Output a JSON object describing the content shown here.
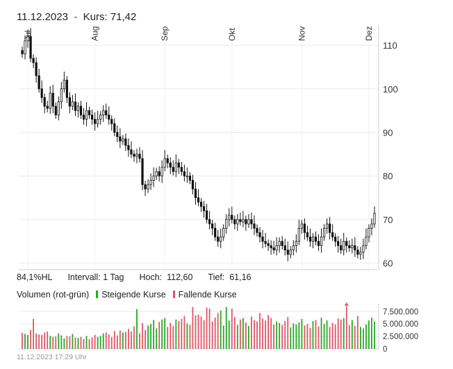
{
  "header": {
    "date": "11.12.2023",
    "separator": "-",
    "price_label": "Kurs: 71,42"
  },
  "info": {
    "hl_ratio": "84,1%HL",
    "interval": "Intervall: 1 Tag",
    "high": "Hoch:  112,60",
    "low": "Tief:  61,16"
  },
  "legend": {
    "volume_label": "Volumen (rot-grün)",
    "rising_label": "Steigende Kurse",
    "falling_label": "Fallende Kurse",
    "rising_color": "#22aa22",
    "falling_color": "#e05565"
  },
  "footer": {
    "timestamp": "11.12.2023 17:29 Uhr"
  },
  "chart_data": [
    {
      "type": "candlestick",
      "x_tick_labels": [
        "Jul",
        "Aug",
        "Sep",
        "Okt",
        "Nov",
        "Dez"
      ],
      "y_ticks": [
        60,
        70,
        80,
        90,
        100,
        110
      ],
      "ylim": [
        58.5,
        114
      ],
      "grid": true,
      "series": [
        {
          "close": [
            108,
            111,
            112,
            107,
            106,
            103,
            100,
            98,
            96,
            95.5,
            99,
            96,
            94,
            97,
            100,
            102,
            98,
            96,
            97,
            95,
            96,
            94,
            93,
            95,
            94,
            93,
            92,
            93,
            94,
            95,
            94,
            93,
            92,
            90,
            89,
            88,
            88.5,
            87,
            86,
            85,
            84.5,
            85,
            84,
            78,
            77,
            78,
            79,
            80,
            81,
            80,
            82,
            84,
            83,
            82,
            81,
            83,
            82,
            81,
            80,
            80,
            79,
            77,
            75,
            74,
            73,
            72,
            70,
            69,
            68,
            66,
            65,
            66,
            68,
            70,
            71,
            70,
            69,
            70,
            69.5,
            70,
            69,
            70,
            69,
            68,
            67,
            66,
            65,
            64.5,
            64,
            63.5,
            63,
            64,
            65,
            64,
            63,
            62,
            63,
            64,
            65,
            68,
            69,
            67,
            66,
            65,
            66,
            65,
            64,
            66,
            68,
            69,
            67,
            66,
            65,
            64,
            63,
            65,
            64,
            63.5,
            64,
            63,
            62,
            62.5,
            64,
            66,
            68,
            69,
            71.42
          ]
        }
      ],
      "volume": {
        "y_ticks": [
          0,
          2500000,
          5000000,
          7500000
        ],
        "y_tick_labels": [
          "0",
          "2.500.000",
          "5.000.000",
          "7.500.000"
        ],
        "ylim": [
          0,
          8800000
        ],
        "series": [
          {
            "values": [
              3200000,
              3000000,
              2800000,
              3800000,
              6000000,
              3100000,
              2900000,
              2800000,
              3300000,
              3500000,
              2600000,
              2400000,
              2500000,
              3100000,
              2700000,
              2100000,
              2600000,
              2500000,
              3000000,
              2300000,
              2200000,
              2400000,
              2000000,
              2600000,
              1900000,
              2300000,
              2800000,
              2400000,
              2600000,
              3100000,
              3300000,
              2900000,
              2400000,
              3600000,
              2700000,
              3700000,
              3300000,
              3400000,
              4000000,
              3500000,
              4500000,
              8000000,
              3100000,
              5200000,
              3800000,
              4700000,
              5000000,
              5800000,
              4100000,
              5400000,
              5900000,
              6200000,
              4400000,
              5200000,
              4600000,
              5900000,
              5600000,
              6000000,
              6600000,
              5100000,
              4800000,
              8400000,
              6700000,
              6900000,
              6500000,
              5800000,
              8300000,
              8100000,
              5500000,
              6300000,
              7200000,
              7700000,
              4700000,
              8400000,
              5700000,
              8100000,
              6400000,
              4800000,
              5900000,
              6200000,
              5300000,
              4600000,
              6500000,
              5800000,
              5500000,
              7200000,
              6100000,
              5700000,
              6800000,
              6200000,
              4900000,
              5500000,
              5200000,
              4800000,
              5600000,
              6400000,
              4300000,
              5100000,
              4900000,
              5300000,
              6000000,
              4700000,
              5000000,
              4200000,
              5600000,
              5800000,
              4500000,
              6300000,
              5000000,
              5700000,
              4400000,
              5200000,
              4900000,
              6100000,
              5900000,
              6200000,
              8800000,
              4800000,
              5800000,
              4600000,
              6600000,
              4400000,
              4100000,
              4900000,
              5700000,
              6300000,
              5500000,
              4700000,
              6200000,
              8600000
            ]
          }
        ]
      }
    }
  ]
}
